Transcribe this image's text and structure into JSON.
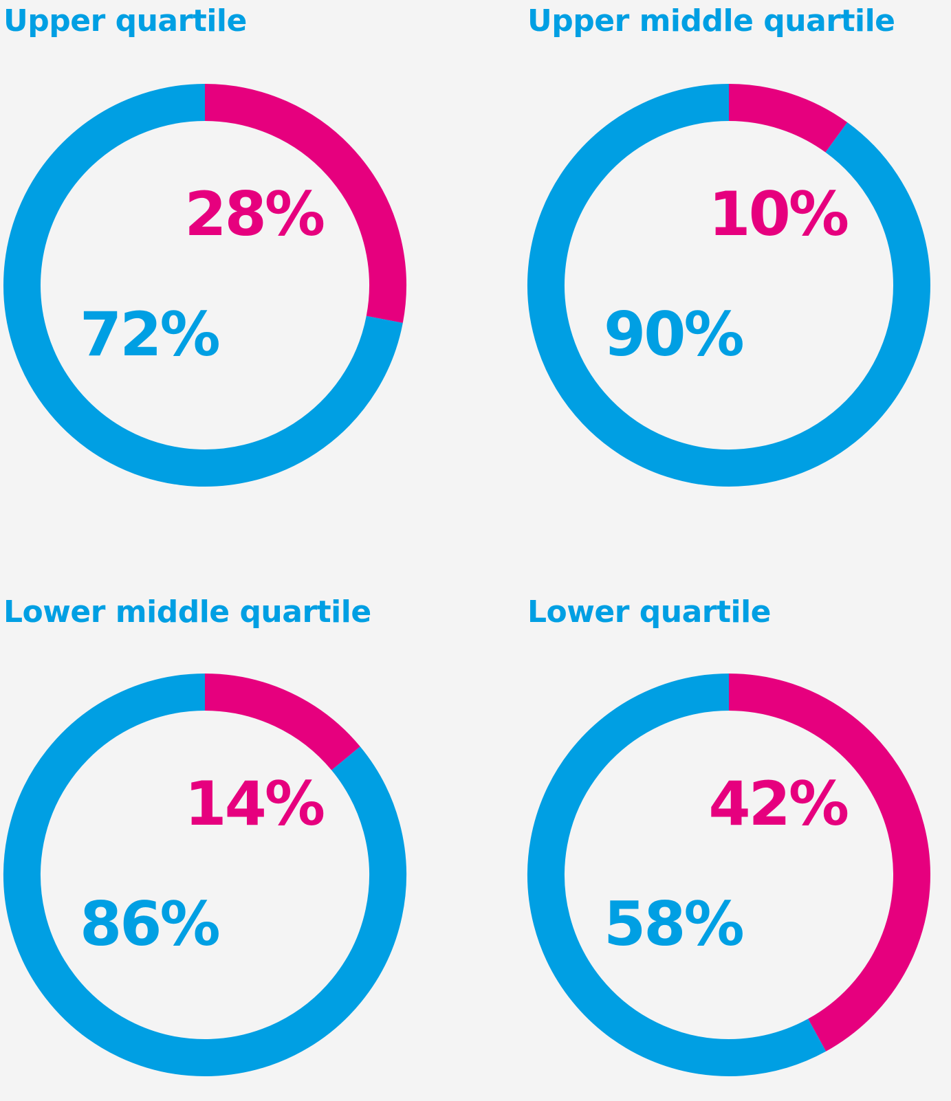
{
  "chart_data": [
    {
      "type": "donut",
      "title": "Upper quartile",
      "values": [
        28,
        72
      ],
      "value_labels": [
        "28%",
        "72%"
      ],
      "colors": [
        "#e6007e",
        "#009fe3"
      ]
    },
    {
      "type": "donut",
      "title": "Upper middle quartile",
      "values": [
        10,
        90
      ],
      "value_labels": [
        "10%",
        "90%"
      ],
      "colors": [
        "#e6007e",
        "#009fe3"
      ]
    },
    {
      "type": "donut",
      "title": "Lower middle quartile",
      "values": [
        14,
        86
      ],
      "value_labels": [
        "14%",
        "86%"
      ],
      "colors": [
        "#e6007e",
        "#009fe3"
      ]
    },
    {
      "type": "donut",
      "title": "Lower quartile",
      "values": [
        42,
        58
      ],
      "value_labels": [
        "42%",
        "58%"
      ],
      "colors": [
        "#e6007e",
        "#009fe3"
      ]
    }
  ]
}
